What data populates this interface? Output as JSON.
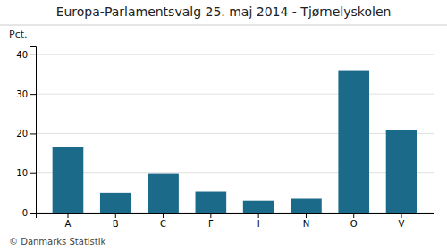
{
  "chart_data": {
    "type": "bar",
    "title": "Europa-Parlamentsvalg 25. maj 2014 - Tjørnelyskolen",
    "ylabel": "Pct.",
    "footer": "© Danmarks Statistik",
    "categories": [
      "A",
      "B",
      "C",
      "F",
      "I",
      "N",
      "O",
      "V"
    ],
    "values": [
      16.5,
      5.0,
      9.8,
      5.3,
      3.0,
      3.5,
      36.0,
      21.0
    ],
    "color": "#1b6a8a",
    "ylim": [
      0,
      42
    ],
    "yticks": [
      0,
      10,
      20,
      30,
      40
    ],
    "grid": true
  }
}
